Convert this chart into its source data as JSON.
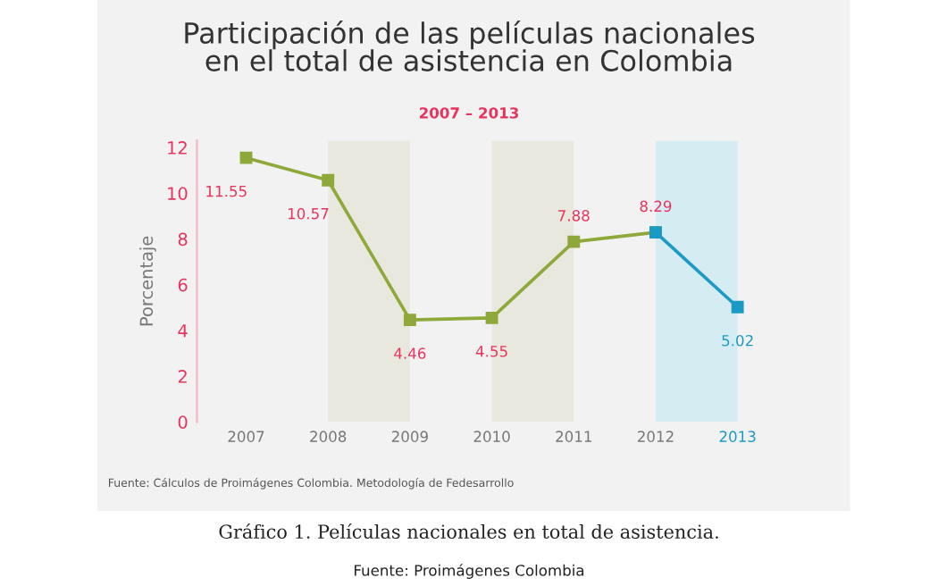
{
  "chart_data": {
    "type": "line",
    "title": "Participación de las películas nacionales\nen el total de asistencia en Colombia",
    "subtitle": "2007 – 2013",
    "ylabel": "Porcentaje",
    "categories": [
      "2007",
      "2008",
      "2009",
      "2010",
      "2011",
      "2012",
      "2013"
    ],
    "series": [
      {
        "color": "#8fa83a",
        "values": [
          11.55,
          10.57,
          4.46,
          4.55,
          7.88,
          8.29,
          null
        ],
        "value_labels": [
          "11.55",
          "10.57",
          "4.46",
          "4.55",
          "7.88",
          "8.29",
          null
        ]
      },
      {
        "color": "#1a9ac4",
        "values": [
          null,
          null,
          null,
          null,
          null,
          8.29,
          5.02
        ],
        "value_labels": [
          null,
          null,
          null,
          null,
          null,
          null,
          "5.02"
        ]
      }
    ],
    "marker": "square",
    "ylim": [
      0,
      12.3
    ],
    "yticks": [
      0,
      2,
      4,
      6,
      8,
      10,
      12
    ],
    "grid": false,
    "bands": [
      {
        "axis": "x",
        "from": "2008",
        "to": "2009",
        "color": "#e9e8df"
      },
      {
        "axis": "x",
        "from": "2010",
        "to": "2011",
        "color": "#e9e8df"
      },
      {
        "axis": "x",
        "from": "2012",
        "to": "2013",
        "color": "#d6ecf3"
      }
    ],
    "annotations": [
      "Fuente: Cálculos de Proimágenes Colombia. Metodología de Fedesarrollo",
      "Gráfico 1. Películas nacionales en total de asistencia.",
      "Fuente: Proimágenes Colombia"
    ]
  }
}
